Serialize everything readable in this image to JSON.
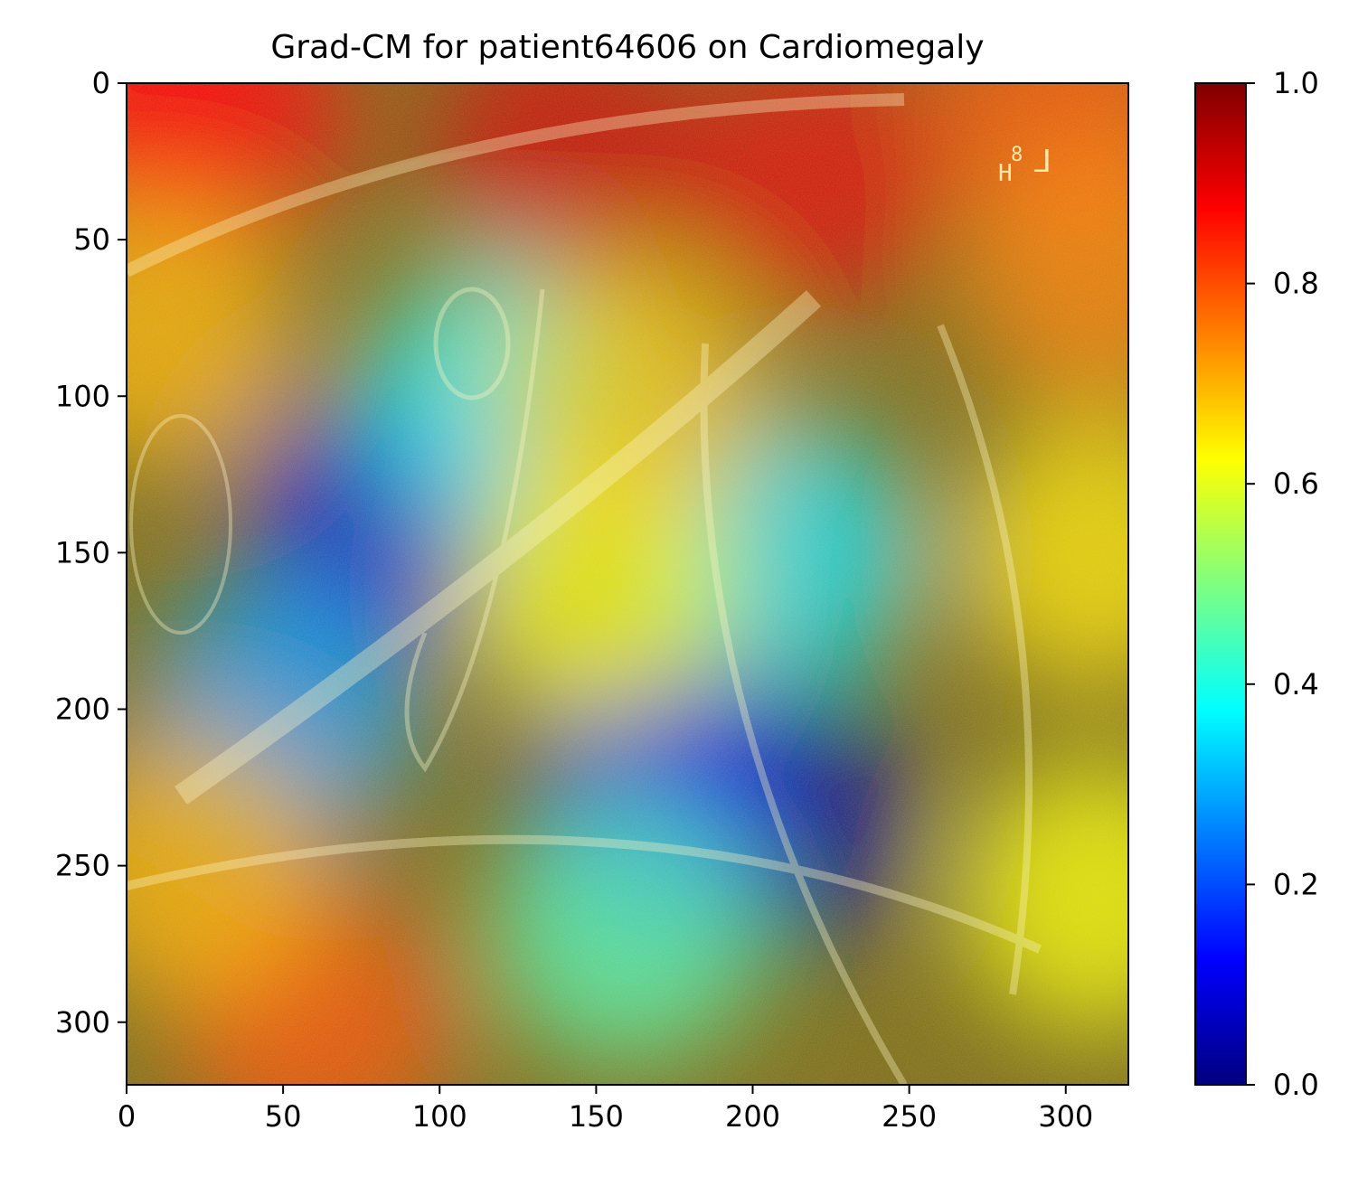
{
  "figure": {
    "title": "Grad-CM for patient64606 on Cardiomegaly",
    "image_extent": {
      "x": [
        0,
        320
      ],
      "y": [
        0,
        320
      ]
    },
    "x_ticks": [
      0,
      50,
      100,
      150,
      200,
      250,
      300
    ],
    "y_ticks": [
      0,
      50,
      100,
      150,
      200,
      250,
      300
    ],
    "corner_marker_text": "H",
    "corner_marker_sup": "8",
    "corner_marker_bracket": "⅃"
  },
  "colorbar": {
    "colormap": "jet",
    "range": [
      0.0,
      1.0
    ],
    "ticks": [
      {
        "value": 0.0,
        "label": "0.0"
      },
      {
        "value": 0.2,
        "label": "0.2"
      },
      {
        "value": 0.4,
        "label": "0.4"
      },
      {
        "value": 0.6,
        "label": "0.6"
      },
      {
        "value": 0.8,
        "label": "0.8"
      },
      {
        "value": 1.0,
        "label": "1.0"
      }
    ],
    "colors": [
      "#00007f",
      "#0000ff",
      "#007fff",
      "#00ffff",
      "#7fff7f",
      "#ffff00",
      "#ff7f00",
      "#ff0000",
      "#7f0000"
    ]
  },
  "heatmap_blobs": [
    {
      "x": 0,
      "y": 0,
      "level": 0.85
    },
    {
      "x": 30,
      "y": 10,
      "level": 0.88
    },
    {
      "x": 140,
      "y": 20,
      "level": 0.92
    },
    {
      "x": 220,
      "y": 30,
      "level": 0.9
    },
    {
      "x": 300,
      "y": 5,
      "level": 0.8
    },
    {
      "x": 310,
      "y": 60,
      "level": 0.75
    },
    {
      "x": 310,
      "y": 150,
      "level": 0.65
    },
    {
      "x": 310,
      "y": 260,
      "level": 0.62
    },
    {
      "x": 80,
      "y": 140,
      "level": 0.1
    },
    {
      "x": 50,
      "y": 200,
      "level": 0.28
    },
    {
      "x": 120,
      "y": 100,
      "level": 0.38
    },
    {
      "x": 210,
      "y": 150,
      "level": 0.35
    },
    {
      "x": 210,
      "y": 235,
      "level": 0.02
    },
    {
      "x": 170,
      "y": 230,
      "level": 0.12
    },
    {
      "x": 160,
      "y": 270,
      "level": 0.45
    },
    {
      "x": 60,
      "y": 300,
      "level": 0.8
    },
    {
      "x": 20,
      "y": 250,
      "level": 0.7
    },
    {
      "x": 150,
      "y": 160,
      "level": 0.62
    },
    {
      "x": 160,
      "y": 100,
      "level": 0.68
    },
    {
      "x": 10,
      "y": 80,
      "level": 0.7
    }
  ]
}
